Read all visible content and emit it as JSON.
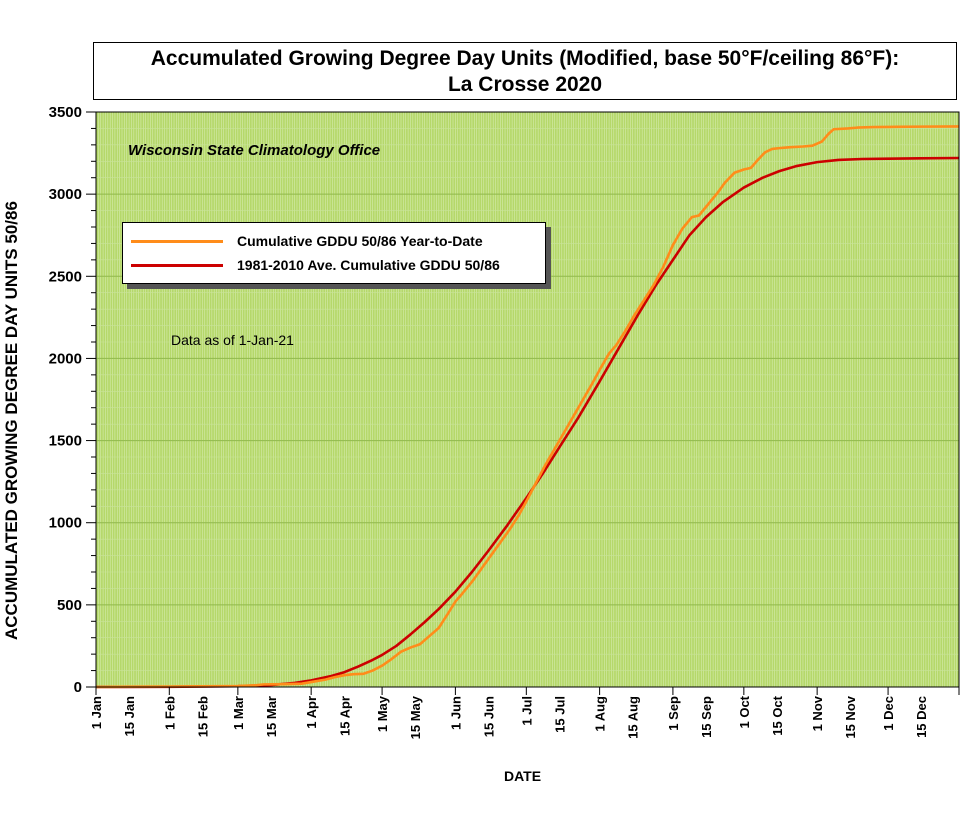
{
  "title_line1": "Accumulated Growing Degree Day Units (Modified, base 50°F/ceiling 86°F):",
  "title_line2": "La Crosse 2020",
  "credit": "Wisconsin State Climatology Office",
  "data_as_of": "Data as of 1-Jan-21",
  "colors": {
    "plot_background": "#b5d86a",
    "ytd_line": "#ff8c1a",
    "average_line": "#cc0000"
  },
  "chart_data": {
    "type": "line",
    "xlabel": "DATE",
    "ylabel": "ACCUMULATED GROWING DEGREE DAY UNITS 50/86",
    "x_unit": "day of year 2020",
    "xlim": [
      1,
      366
    ],
    "ylim": [
      0,
      3500
    ],
    "y_ticks": [
      0,
      500,
      1000,
      1500,
      2000,
      2500,
      3000,
      3500
    ],
    "x_ticks": [
      {
        "label": "1 Jan",
        "day": 1
      },
      {
        "label": "15 Jan",
        "day": 15
      },
      {
        "label": "1 Feb",
        "day": 32
      },
      {
        "label": "15 Feb",
        "day": 46
      },
      {
        "label": "1 Mar",
        "day": 61
      },
      {
        "label": "15 Mar",
        "day": 75
      },
      {
        "label": "1 Apr",
        "day": 92
      },
      {
        "label": "15 Apr",
        "day": 106
      },
      {
        "label": "1 May",
        "day": 122
      },
      {
        "label": "15 May",
        "day": 136
      },
      {
        "label": "1 Jun",
        "day": 153
      },
      {
        "label": "15 Jun",
        "day": 167
      },
      {
        "label": "1 Jul",
        "day": 183
      },
      {
        "label": "15 Jul",
        "day": 197
      },
      {
        "label": "1 Aug",
        "day": 214
      },
      {
        "label": "15 Aug",
        "day": 228
      },
      {
        "label": "1 Sep",
        "day": 245
      },
      {
        "label": "15 Sep",
        "day": 259
      },
      {
        "label": "1 Oct",
        "day": 275
      },
      {
        "label": "15 Oct",
        "day": 289
      },
      {
        "label": "1 Nov",
        "day": 306
      },
      {
        "label": "15 Nov",
        "day": 320
      },
      {
        "label": "1 Dec",
        "day": 336
      },
      {
        "label": "15 Dec",
        "day": 350
      }
    ],
    "grid": true,
    "legend_position": "upper-left",
    "series": [
      {
        "name": "Cumulative GDDU 50/86 Year-to-Date",
        "color": "#ff8c1a",
        "points": [
          [
            1,
            0
          ],
          [
            15,
            2
          ],
          [
            32,
            3
          ],
          [
            46,
            4
          ],
          [
            61,
            6
          ],
          [
            68,
            10
          ],
          [
            72,
            16
          ],
          [
            80,
            17
          ],
          [
            88,
            20
          ],
          [
            92,
            30
          ],
          [
            98,
            45
          ],
          [
            102,
            60
          ],
          [
            106,
            72
          ],
          [
            110,
            78
          ],
          [
            114,
            80
          ],
          [
            118,
            100
          ],
          [
            122,
            130
          ],
          [
            126,
            170
          ],
          [
            130,
            215
          ],
          [
            134,
            240
          ],
          [
            138,
            260
          ],
          [
            142,
            310
          ],
          [
            146,
            360
          ],
          [
            150,
            450
          ],
          [
            153,
            520
          ],
          [
            156,
            570
          ],
          [
            160,
            640
          ],
          [
            164,
            720
          ],
          [
            168,
            800
          ],
          [
            172,
            880
          ],
          [
            176,
            960
          ],
          [
            180,
            1050
          ],
          [
            183,
            1130
          ],
          [
            187,
            1240
          ],
          [
            191,
            1350
          ],
          [
            195,
            1450
          ],
          [
            199,
            1550
          ],
          [
            203,
            1650
          ],
          [
            207,
            1750
          ],
          [
            211,
            1850
          ],
          [
            214,
            1930
          ],
          [
            218,
            2030
          ],
          [
            221,
            2080
          ],
          [
            225,
            2170
          ],
          [
            229,
            2270
          ],
          [
            233,
            2360
          ],
          [
            237,
            2450
          ],
          [
            241,
            2560
          ],
          [
            245,
            2690
          ],
          [
            249,
            2790
          ],
          [
            253,
            2860
          ],
          [
            256,
            2870
          ],
          [
            260,
            2940
          ],
          [
            264,
            3010
          ],
          [
            267,
            3070
          ],
          [
            271,
            3130
          ],
          [
            275,
            3150
          ],
          [
            278,
            3160
          ],
          [
            281,
            3210
          ],
          [
            284,
            3255
          ],
          [
            287,
            3275
          ],
          [
            290,
            3280
          ],
          [
            294,
            3285
          ],
          [
            300,
            3290
          ],
          [
            304,
            3295
          ],
          [
            308,
            3320
          ],
          [
            311,
            3370
          ],
          [
            313,
            3395
          ],
          [
            319,
            3400
          ],
          [
            323,
            3405
          ],
          [
            330,
            3408
          ],
          [
            340,
            3410
          ],
          [
            350,
            3411
          ],
          [
            366,
            3412
          ]
        ]
      },
      {
        "name": "1981-2010 Ave. Cumulative GDDU 50/86",
        "color": "#cc0000",
        "points": [
          [
            1,
            0
          ],
          [
            32,
            1
          ],
          [
            61,
            5
          ],
          [
            75,
            12
          ],
          [
            85,
            25
          ],
          [
            92,
            40
          ],
          [
            100,
            65
          ],
          [
            106,
            90
          ],
          [
            112,
            125
          ],
          [
            118,
            165
          ],
          [
            122,
            195
          ],
          [
            128,
            250
          ],
          [
            134,
            320
          ],
          [
            140,
            395
          ],
          [
            146,
            475
          ],
          [
            153,
            580
          ],
          [
            160,
            700
          ],
          [
            167,
            830
          ],
          [
            175,
            985
          ],
          [
            183,
            1150
          ],
          [
            190,
            1300
          ],
          [
            197,
            1460
          ],
          [
            205,
            1640
          ],
          [
            214,
            1860
          ],
          [
            222,
            2060
          ],
          [
            230,
            2260
          ],
          [
            238,
            2450
          ],
          [
            245,
            2600
          ],
          [
            252,
            2750
          ],
          [
            259,
            2860
          ],
          [
            266,
            2950
          ],
          [
            275,
            3040
          ],
          [
            283,
            3100
          ],
          [
            290,
            3140
          ],
          [
            297,
            3170
          ],
          [
            306,
            3195
          ],
          [
            315,
            3208
          ],
          [
            325,
            3214
          ],
          [
            336,
            3216
          ],
          [
            350,
            3218
          ],
          [
            366,
            3220
          ]
        ]
      }
    ]
  }
}
